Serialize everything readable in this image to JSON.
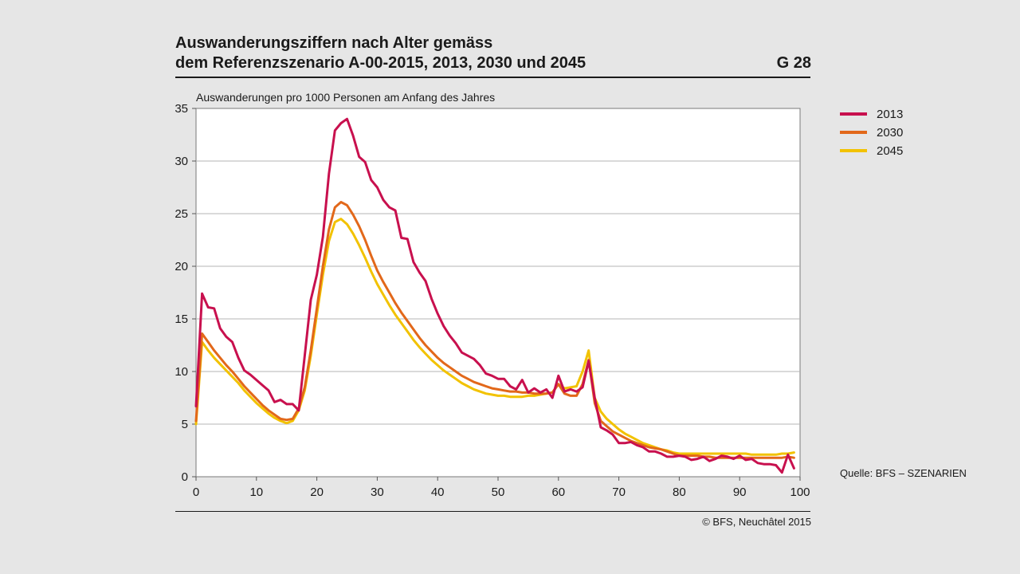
{
  "header": {
    "title_line1": "Auswanderungsziffern nach Alter gemäss",
    "title_line2": "dem Referenzszenario A-00-2015, 2013, 2030 und 2045",
    "code": "G 28"
  },
  "footer": {
    "source": "Quelle: BFS – SZENARIEN",
    "copyright": "© BFS, Neuchâtel 2015"
  },
  "chart_data": {
    "type": "line",
    "title": "Auswanderungsziffern nach Alter gemäss dem Referenzszenario A-00-2015, 2013, 2030 und 2045",
    "xlabel": "",
    "ylabel": "Auswanderungen pro 1000 Personen am Anfang des Jahres",
    "xlim": [
      0,
      100
    ],
    "ylim": [
      0,
      35
    ],
    "x_ticks": [
      0,
      10,
      20,
      30,
      40,
      50,
      60,
      70,
      80,
      90,
      100
    ],
    "y_ticks": [
      0,
      5,
      10,
      15,
      20,
      25,
      30,
      35
    ],
    "grid": "horizontal",
    "legend_position": "top-right, outside plot",
    "series": [
      {
        "name": "2013",
        "color": "#c8104e",
        "x": [
          0,
          1,
          2,
          3,
          4,
          5,
          6,
          7,
          8,
          9,
          10,
          11,
          12,
          13,
          14,
          15,
          16,
          17,
          18,
          19,
          20,
          21,
          22,
          23,
          24,
          25,
          26,
          27,
          28,
          29,
          30,
          31,
          32,
          33,
          34,
          35,
          36,
          37,
          38,
          39,
          40,
          41,
          42,
          43,
          44,
          45,
          46,
          47,
          48,
          49,
          50,
          51,
          52,
          53,
          54,
          55,
          56,
          57,
          58,
          59,
          60,
          61,
          62,
          63,
          64,
          65,
          66,
          67,
          68,
          69,
          70,
          71,
          72,
          73,
          74,
          75,
          76,
          77,
          78,
          79,
          80,
          81,
          82,
          83,
          84,
          85,
          86,
          87,
          88,
          89,
          90,
          91,
          92,
          93,
          94,
          95,
          96,
          97,
          98,
          99
        ],
        "values": [
          6.7,
          17.4,
          16.1,
          16.0,
          14.1,
          13.3,
          12.8,
          11.3,
          10.1,
          9.7,
          9.2,
          8.7,
          8.2,
          7.1,
          7.3,
          6.9,
          6.9,
          6.3,
          11.5,
          16.8,
          19.2,
          22.8,
          28.8,
          32.9,
          33.6,
          34.0,
          32.4,
          30.4,
          29.9,
          28.2,
          27.5,
          26.3,
          25.6,
          25.3,
          22.7,
          22.6,
          20.4,
          19.4,
          18.6,
          16.9,
          15.5,
          14.3,
          13.4,
          12.7,
          11.8,
          11.5,
          11.2,
          10.6,
          9.8,
          9.6,
          9.3,
          9.3,
          8.6,
          8.3,
          9.2,
          8.0,
          8.4,
          8.0,
          8.3,
          7.5,
          9.6,
          8.1,
          8.3,
          8.1,
          8.5,
          11.0,
          7.5,
          4.7,
          4.4,
          4.0,
          3.2,
          3.2,
          3.3,
          3.0,
          2.8,
          2.4,
          2.4,
          2.2,
          1.9,
          1.9,
          2.0,
          1.9,
          1.6,
          1.7,
          1.9,
          1.5,
          1.7,
          2.0,
          1.9,
          1.7,
          2.0,
          1.6,
          1.7,
          1.3,
          1.2,
          1.2,
          1.1,
          0.4,
          2.1,
          0.8
        ]
      },
      {
        "name": "2030",
        "color": "#e2681a",
        "x": [
          0,
          1,
          2,
          3,
          4,
          5,
          6,
          7,
          8,
          9,
          10,
          11,
          12,
          13,
          14,
          15,
          16,
          17,
          18,
          19,
          20,
          21,
          22,
          23,
          24,
          25,
          26,
          27,
          28,
          29,
          30,
          31,
          32,
          33,
          34,
          35,
          36,
          37,
          38,
          39,
          40,
          41,
          42,
          43,
          44,
          45,
          46,
          47,
          48,
          49,
          50,
          51,
          52,
          53,
          54,
          55,
          56,
          57,
          58,
          59,
          60,
          61,
          62,
          63,
          64,
          65,
          66,
          67,
          68,
          69,
          70,
          71,
          72,
          73,
          74,
          75,
          76,
          77,
          78,
          79,
          80,
          81,
          82,
          83,
          84,
          85,
          86,
          87,
          88,
          89,
          90,
          91,
          92,
          93,
          94,
          95,
          96,
          97,
          98,
          99
        ],
        "values": [
          5.3,
          13.6,
          12.8,
          12.0,
          11.3,
          10.6,
          10.0,
          9.3,
          8.6,
          8.0,
          7.4,
          6.8,
          6.3,
          5.9,
          5.5,
          5.4,
          5.5,
          6.5,
          8.5,
          12.0,
          16.0,
          20.0,
          23.5,
          25.6,
          26.1,
          25.8,
          24.9,
          23.8,
          22.5,
          21.0,
          19.6,
          18.5,
          17.5,
          16.5,
          15.6,
          14.8,
          14.0,
          13.2,
          12.5,
          11.9,
          11.3,
          10.8,
          10.4,
          10.0,
          9.6,
          9.3,
          9.0,
          8.8,
          8.6,
          8.4,
          8.3,
          8.2,
          8.1,
          8.1,
          8.0,
          8.0,
          7.9,
          7.9,
          7.9,
          8.0,
          8.8,
          7.9,
          7.7,
          7.7,
          8.8,
          11.1,
          7.0,
          5.3,
          4.8,
          4.3,
          4.0,
          3.7,
          3.4,
          3.2,
          3.0,
          2.8,
          2.7,
          2.6,
          2.4,
          2.2,
          2.0,
          2.0,
          2.0,
          2.0,
          1.9,
          1.9,
          1.8,
          1.8,
          1.8,
          1.8,
          1.8,
          1.8,
          1.8,
          1.8,
          1.8,
          1.8,
          1.8,
          1.8,
          1.9,
          1.8
        ]
      },
      {
        "name": "2045",
        "color": "#f2c200",
        "x": [
          0,
          1,
          2,
          3,
          4,
          5,
          6,
          7,
          8,
          9,
          10,
          11,
          12,
          13,
          14,
          15,
          16,
          17,
          18,
          19,
          20,
          21,
          22,
          23,
          24,
          25,
          26,
          27,
          28,
          29,
          30,
          31,
          32,
          33,
          34,
          35,
          36,
          37,
          38,
          39,
          40,
          41,
          42,
          43,
          44,
          45,
          46,
          47,
          48,
          49,
          50,
          51,
          52,
          53,
          54,
          55,
          56,
          57,
          58,
          59,
          60,
          61,
          62,
          63,
          64,
          65,
          66,
          67,
          68,
          69,
          70,
          71,
          72,
          73,
          74,
          75,
          76,
          77,
          78,
          79,
          80,
          81,
          82,
          83,
          84,
          85,
          86,
          87,
          88,
          89,
          90,
          91,
          92,
          93,
          94,
          95,
          96,
          97,
          98,
          99
        ],
        "values": [
          5.0,
          12.8,
          12.0,
          11.3,
          10.7,
          10.1,
          9.5,
          8.9,
          8.2,
          7.6,
          7.0,
          6.5,
          6.0,
          5.6,
          5.3,
          5.1,
          5.3,
          6.3,
          8.2,
          11.5,
          15.4,
          19.2,
          22.4,
          24.2,
          24.5,
          24.0,
          23.1,
          22.0,
          20.8,
          19.5,
          18.3,
          17.3,
          16.3,
          15.4,
          14.6,
          13.8,
          13.0,
          12.3,
          11.7,
          11.1,
          10.6,
          10.1,
          9.7,
          9.3,
          8.9,
          8.6,
          8.3,
          8.1,
          7.9,
          7.8,
          7.7,
          7.7,
          7.6,
          7.6,
          7.6,
          7.7,
          7.7,
          7.8,
          7.9,
          8.0,
          8.8,
          8.4,
          8.5,
          8.6,
          10.0,
          12.0,
          7.5,
          6.2,
          5.5,
          5.0,
          4.5,
          4.1,
          3.8,
          3.5,
          3.2,
          3.0,
          2.8,
          2.6,
          2.5,
          2.3,
          2.2,
          2.2,
          2.2,
          2.2,
          2.2,
          2.2,
          2.2,
          2.2,
          2.2,
          2.2,
          2.2,
          2.2,
          2.1,
          2.1,
          2.1,
          2.1,
          2.1,
          2.2,
          2.2,
          2.3
        ]
      }
    ]
  }
}
